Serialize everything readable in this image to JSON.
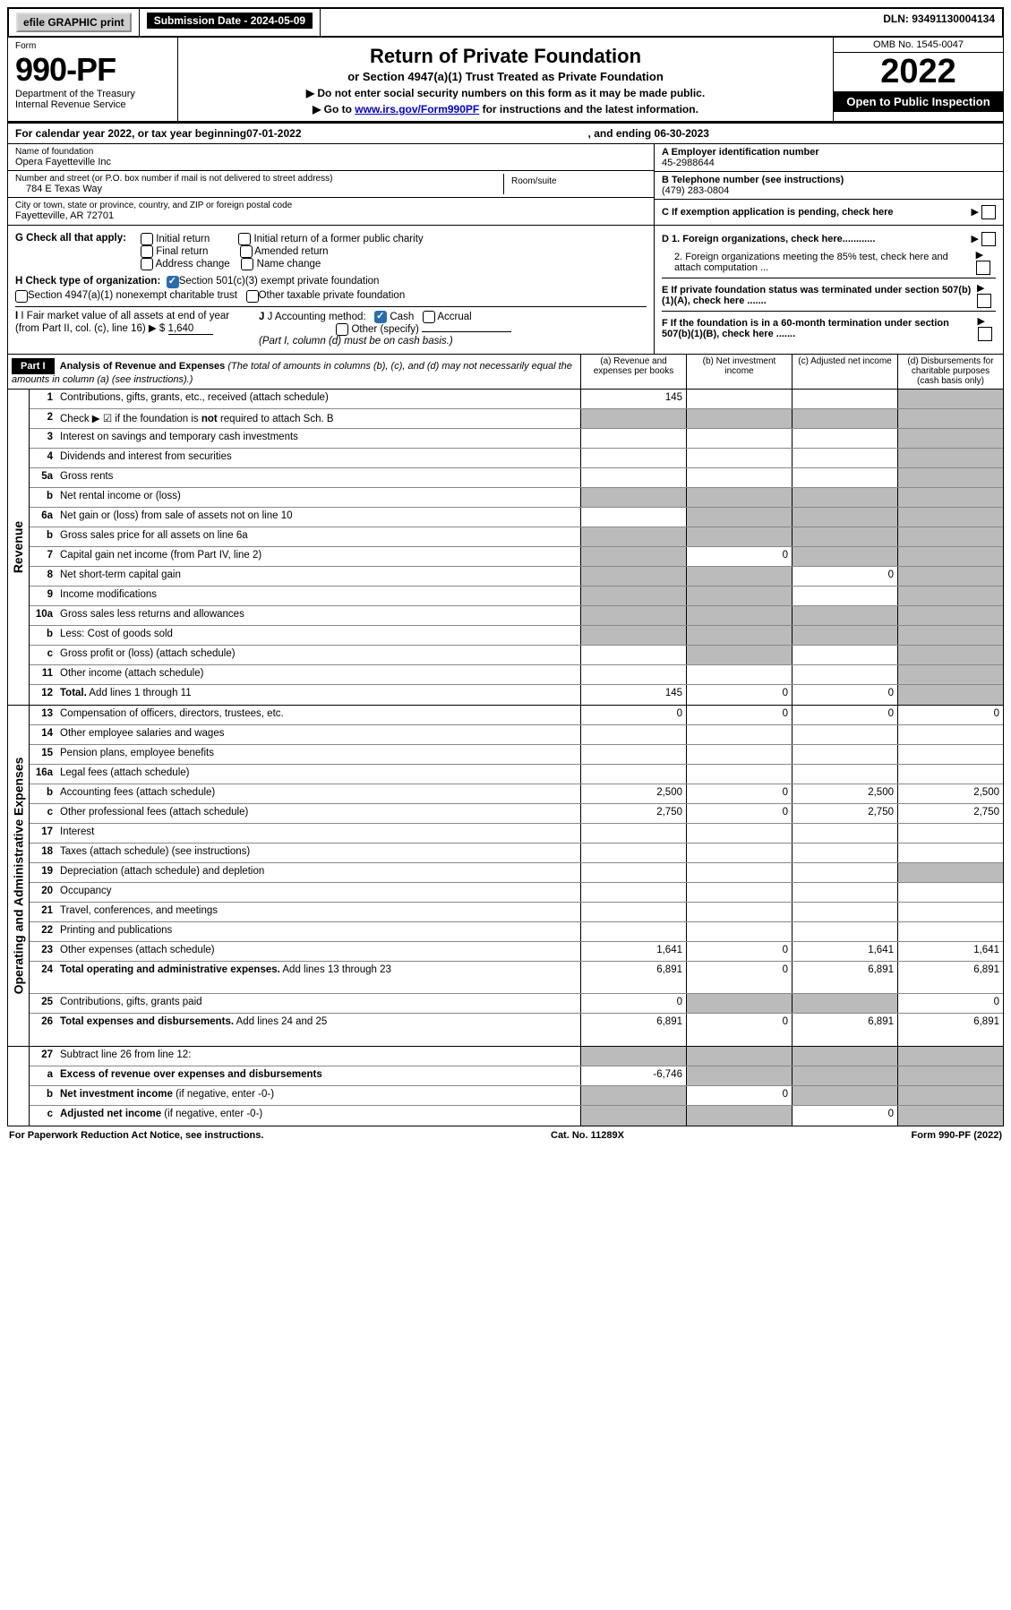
{
  "top": {
    "efile_label": "efile GRAPHIC print",
    "submission_label": "Submission Date - 2024-05-09",
    "dln_label": "DLN: 93491130004134"
  },
  "header": {
    "form_word": "Form",
    "form_number": "990-PF",
    "dept1": "Department of the Treasury",
    "dept2": "Internal Revenue Service",
    "title": "Return of Private Foundation",
    "subtitle": "or Section 4947(a)(1) Trust Treated as Private Foundation",
    "note1": "▶ Do not enter social security numbers on this form as it may be made public.",
    "note2_pre": "▶ Go to ",
    "note2_link": "www.irs.gov/Form990PF",
    "note2_post": " for instructions and the latest information.",
    "omb": "OMB No. 1545-0047",
    "year": "2022",
    "open": "Open to Public Inspection"
  },
  "ty": {
    "prefix": "For calendar year 2022, or tax year beginning ",
    "begin": "07-01-2022",
    "mid": ", and ending ",
    "end": "06-30-2023"
  },
  "entity": {
    "name_label": "Name of foundation",
    "name": "Opera Fayetteville Inc",
    "addr_label": "Number and street (or P.O. box number if mail is not delivered to street address)",
    "addr": "784 E Texas Way",
    "room_label": "Room/suite",
    "city_label": "City or town, state or province, country, and ZIP or foreign postal code",
    "city": "Fayetteville, AR  72701",
    "ein_label": "A Employer identification number",
    "ein": "45-2988644",
    "tel_label": "B Telephone number (see instructions)",
    "tel": "(479) 283-0804",
    "c_label": "C If exemption application is pending, check here",
    "g_label": "G Check all that apply:",
    "g_opts": [
      "Initial return",
      "Final return",
      "Address change",
      "Initial return of a former public charity",
      "Amended return",
      "Name change"
    ],
    "h_label": "H Check type of organization:",
    "h1": "Section 501(c)(3) exempt private foundation",
    "h2": "Section 4947(a)(1) nonexempt charitable trust",
    "h3": "Other taxable private foundation",
    "i_label": "I Fair market value of all assets at end of year (from Part II, col. (c), line 16) ▶ $",
    "i_val": "1,640",
    "j_label": "J Accounting method:",
    "j1": "Cash",
    "j2": "Accrual",
    "j3": "Other (specify)",
    "j_note": "(Part I, column (d) must be on cash basis.)",
    "d1": "D 1. Foreign organizations, check here............",
    "d2": "2. Foreign organizations meeting the 85% test, check here and attach computation ...",
    "e": "E  If private foundation status was terminated under section 507(b)(1)(A), check here .......",
    "f": "F  If the foundation is in a 60-month termination under section 507(b)(1)(B), check here .......",
    "p_colors": {
      "bg": "#ffffff",
      "border": "#000000",
      "grey": "#bbbbbb",
      "link": "#0000cc",
      "chk": "#2b6cb0"
    }
  },
  "part1": {
    "hdr": "Part I",
    "title": "Analysis of Revenue and Expenses",
    "note": " (The total of amounts in columns (b), (c), and (d) may not necessarily equal the amounts in column (a) (see instructions).)",
    "col_a": "(a)  Revenue and expenses per books",
    "col_b": "(b)  Net investment income",
    "col_c": "(c)  Adjusted net income",
    "col_d": "(d)  Disbursements for charitable purposes (cash basis only)"
  },
  "rows": [
    {
      "section": "Revenue",
      "ln": "1",
      "desc": "Contributions, gifts, grants, etc., received (attach schedule)",
      "a": "145",
      "b": "",
      "c": "",
      "d": "",
      "dg": true
    },
    {
      "ln": "2",
      "desc": "Check ▶ ☑ if the foundation is <b>not</b> required to attach Sch. B",
      "a": "",
      "b": "",
      "c": "",
      "d": "",
      "ag": true,
      "bg": true,
      "cg": true,
      "dg": true,
      "html": true
    },
    {
      "ln": "3",
      "desc": "Interest on savings and temporary cash investments",
      "a": "",
      "b": "",
      "c": "",
      "d": "",
      "dg": true
    },
    {
      "ln": "4",
      "desc": "Dividends and interest from securities",
      "a": "",
      "b": "",
      "c": "",
      "d": "",
      "dg": true
    },
    {
      "ln": "5a",
      "desc": "Gross rents",
      "a": "",
      "b": "",
      "c": "",
      "d": "",
      "dg": true
    },
    {
      "ln": "b",
      "desc": "Net rental income or (loss)",
      "a": "",
      "b": "",
      "c": "",
      "d": "",
      "ag": true,
      "bg": true,
      "cg": true,
      "dg": true
    },
    {
      "ln": "6a",
      "desc": "Net gain or (loss) from sale of assets not on line 10",
      "a": "",
      "b": "",
      "c": "",
      "d": "",
      "bg": true,
      "cg": true,
      "dg": true
    },
    {
      "ln": "b",
      "desc": "Gross sales price for all assets on line 6a",
      "a": "",
      "b": "",
      "c": "",
      "d": "",
      "ag": true,
      "bg": true,
      "cg": true,
      "dg": true
    },
    {
      "ln": "7",
      "desc": "Capital gain net income (from Part IV, line 2)",
      "a": "",
      "b": "0",
      "c": "",
      "d": "",
      "ag": true,
      "cg": true,
      "dg": true
    },
    {
      "ln": "8",
      "desc": "Net short-term capital gain",
      "a": "",
      "b": "",
      "c": "0",
      "d": "",
      "ag": true,
      "bg": true,
      "dg": true
    },
    {
      "ln": "9",
      "desc": "Income modifications",
      "a": "",
      "b": "",
      "c": "",
      "d": "",
      "ag": true,
      "bg": true,
      "dg": true
    },
    {
      "ln": "10a",
      "desc": "Gross sales less returns and allowances",
      "a": "",
      "b": "",
      "c": "",
      "d": "",
      "ag": true,
      "bg": true,
      "cg": true,
      "dg": true
    },
    {
      "ln": "b",
      "desc": "Less: Cost of goods sold",
      "a": "",
      "b": "",
      "c": "",
      "d": "",
      "ag": true,
      "bg": true,
      "cg": true,
      "dg": true
    },
    {
      "ln": "c",
      "desc": "Gross profit or (loss) (attach schedule)",
      "a": "",
      "b": "",
      "c": "",
      "d": "",
      "bg": true,
      "dg": true
    },
    {
      "ln": "11",
      "desc": "Other income (attach schedule)",
      "a": "",
      "b": "",
      "c": "",
      "d": "",
      "dg": true
    },
    {
      "ln": "12",
      "desc": "<b>Total.</b> Add lines 1 through 11",
      "a": "145",
      "b": "0",
      "c": "0",
      "d": "",
      "dg": true,
      "html": true
    },
    {
      "section": "Operating and Administrative Expenses",
      "ln": "13",
      "desc": "Compensation of officers, directors, trustees, etc.",
      "a": "0",
      "b": "0",
      "c": "0",
      "d": "0"
    },
    {
      "ln": "14",
      "desc": "Other employee salaries and wages",
      "a": "",
      "b": "",
      "c": "",
      "d": ""
    },
    {
      "ln": "15",
      "desc": "Pension plans, employee benefits",
      "a": "",
      "b": "",
      "c": "",
      "d": ""
    },
    {
      "ln": "16a",
      "desc": "Legal fees (attach schedule)",
      "a": "",
      "b": "",
      "c": "",
      "d": ""
    },
    {
      "ln": "b",
      "desc": "Accounting fees (attach schedule)",
      "a": "2,500",
      "b": "0",
      "c": "2,500",
      "d": "2,500"
    },
    {
      "ln": "c",
      "desc": "Other professional fees (attach schedule)",
      "a": "2,750",
      "b": "0",
      "c": "2,750",
      "d": "2,750"
    },
    {
      "ln": "17",
      "desc": "Interest",
      "a": "",
      "b": "",
      "c": "",
      "d": ""
    },
    {
      "ln": "18",
      "desc": "Taxes (attach schedule) (see instructions)",
      "a": "",
      "b": "",
      "c": "",
      "d": ""
    },
    {
      "ln": "19",
      "desc": "Depreciation (attach schedule) and depletion",
      "a": "",
      "b": "",
      "c": "",
      "d": "",
      "dg": true
    },
    {
      "ln": "20",
      "desc": "Occupancy",
      "a": "",
      "b": "",
      "c": "",
      "d": ""
    },
    {
      "ln": "21",
      "desc": "Travel, conferences, and meetings",
      "a": "",
      "b": "",
      "c": "",
      "d": ""
    },
    {
      "ln": "22",
      "desc": "Printing and publications",
      "a": "",
      "b": "",
      "c": "",
      "d": ""
    },
    {
      "ln": "23",
      "desc": "Other expenses (attach schedule)",
      "a": "1,641",
      "b": "0",
      "c": "1,641",
      "d": "1,641"
    },
    {
      "ln": "24",
      "desc": "<b>Total operating and administrative expenses.</b> Add lines 13 through 23",
      "a": "6,891",
      "b": "0",
      "c": "6,891",
      "d": "6,891",
      "html": true,
      "tall": true
    },
    {
      "ln": "25",
      "desc": "Contributions, gifts, grants paid",
      "a": "0",
      "b": "",
      "c": "",
      "d": "0",
      "bg": true,
      "cg": true
    },
    {
      "ln": "26",
      "desc": "<b>Total expenses and disbursements.</b> Add lines 24 and 25",
      "a": "6,891",
      "b": "0",
      "c": "6,891",
      "d": "6,891",
      "html": true,
      "tall": true
    },
    {
      "section": "",
      "ln": "27",
      "desc": "Subtract line 26 from line 12:",
      "a": "",
      "b": "",
      "c": "",
      "d": "",
      "ag": true,
      "bg": true,
      "cg": true,
      "dg": true
    },
    {
      "ln": "a",
      "desc": "<b>Excess of revenue over expenses and disbursements</b>",
      "a": "-6,746",
      "b": "",
      "c": "",
      "d": "",
      "bg": true,
      "cg": true,
      "dg": true,
      "html": true
    },
    {
      "ln": "b",
      "desc": "<b>Net investment income</b> (if negative, enter -0-)",
      "a": "",
      "b": "0",
      "c": "",
      "d": "",
      "ag": true,
      "cg": true,
      "dg": true,
      "html": true
    },
    {
      "ln": "c",
      "desc": "<b>Adjusted net income</b> (if negative, enter -0-)",
      "a": "",
      "b": "",
      "c": "0",
      "d": "",
      "ag": true,
      "bg": true,
      "dg": true,
      "html": true
    }
  ],
  "footer": {
    "left": "For Paperwork Reduction Act Notice, see instructions.",
    "mid": "Cat. No. 11289X",
    "right": "Form 990-PF (2022)"
  }
}
